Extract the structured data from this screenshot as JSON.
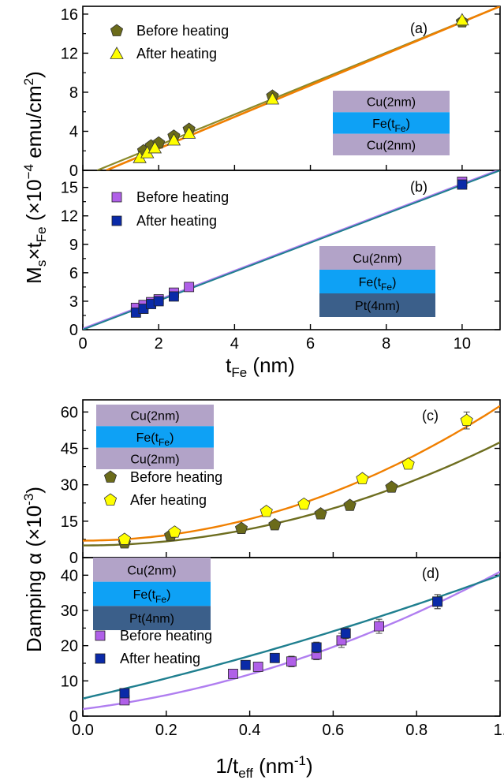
{
  "colors": {
    "before_ab_marker": "#6b6b1a",
    "after_a_marker": "#ffff00",
    "line_before_a": "#8a8a2a",
    "line_after_a": "#f07f00",
    "before_b_marker": "#b060e8",
    "after_b_marker": "#0a2aa8",
    "line_before_b": "#b07ef0",
    "line_after_b": "#1f7f8f",
    "line_before_c": "#6e6e20",
    "line_after_c": "#f07f00",
    "line_before_d": "#b07ef0",
    "line_after_d": "#1f7f8f",
    "layer_cu": "#b2a3c8",
    "layer_fe": "#0ea1f5",
    "layer_pt": "#3b5f8a"
  },
  "figure": {
    "top_ylabel": "M",
    "top_ylabel_sub1": "s",
    "top_ylabel_times": "×t",
    "top_ylabel_sub2": "Fe",
    "top_ylabel_rest": " (×10",
    "top_ylabel_exp": "−4",
    "top_ylabel_unit": " emu/cm",
    "top_ylabel_unit_exp": "2",
    "top_ylabel_close": ")",
    "top_xlabel_main": "t",
    "top_xlabel_sub": "Fe",
    "top_xlabel_unit": " (nm)",
    "bottom_ylabel": "Damping α (×10",
    "bottom_ylabel_exp": "-3",
    "bottom_ylabel_close": ")",
    "bottom_xlabel_main": "1/t",
    "bottom_xlabel_sub": "eff",
    "bottom_xlabel_unit": " (nm",
    "bottom_xlabel_exp": "-1",
    "bottom_xlabel_close": ")"
  },
  "chart_data": [
    {
      "panel": "(a)",
      "type": "scatter",
      "xlim": [
        0,
        11
      ],
      "ylim": [
        0,
        16.8
      ],
      "yticks": [
        "0",
        "4",
        "8",
        "12",
        "16"
      ],
      "legend": [
        "Before heating",
        "After heating"
      ],
      "legend_position": "top-left",
      "stack": [
        "Cu(2nm)",
        "Fe(t",
        "Fe",
        ")",
        "Cu(2nm)"
      ],
      "series": [
        {
          "name": "Before heating",
          "marker": "pentagon",
          "x": [
            1.6,
            1.8,
            2.0,
            2.4,
            2.8,
            5.0,
            10.0
          ],
          "y": [
            2.0,
            2.5,
            2.8,
            3.5,
            4.2,
            7.6,
            15.2
          ]
        },
        {
          "name": "After heating",
          "marker": "triangle",
          "x": [
            1.5,
            1.7,
            1.9,
            2.4,
            2.8,
            5.0,
            10.0
          ],
          "y": [
            1.3,
            1.8,
            2.3,
            3.1,
            3.8,
            7.3,
            15.4
          ]
        }
      ],
      "fits": [
        {
          "series": "Before heating",
          "x": [
            0.38,
            11.0
          ],
          "y": [
            0,
            16.8
          ]
        },
        {
          "series": "After heating",
          "x": [
            0.62,
            11.0
          ],
          "y": [
            0,
            16.8
          ]
        }
      ]
    },
    {
      "panel": "(b)",
      "type": "scatter",
      "xlim": [
        0,
        11
      ],
      "ylim": [
        0,
        16.8
      ],
      "xticks": [
        "0",
        "2",
        "4",
        "6",
        "8",
        "10"
      ],
      "yticks": [
        "0",
        "3",
        "6",
        "9",
        "12",
        "15"
      ],
      "legend": [
        "Before heating",
        "After heating"
      ],
      "legend_position": "top-left",
      "stack": [
        "Cu(2nm)",
        "Fe(t",
        "Fe",
        ")",
        "Pt(4nm)"
      ],
      "series": [
        {
          "name": "Before heating",
          "marker": "square",
          "x": [
            1.4,
            1.6,
            1.8,
            2.0,
            2.4,
            2.8,
            10.0
          ],
          "y": [
            2.3,
            2.6,
            2.9,
            3.2,
            3.9,
            4.5,
            15.6
          ]
        },
        {
          "name": "After heating",
          "marker": "square",
          "x": [
            1.4,
            1.6,
            1.8,
            2.0,
            2.4,
            10.0
          ],
          "y": [
            1.8,
            2.2,
            2.7,
            3.0,
            3.5,
            15.3
          ]
        }
      ],
      "fits": [
        {
          "series": "Before heating",
          "x": [
            0.0,
            11.0
          ],
          "y": [
            0.1,
            16.9
          ]
        },
        {
          "series": "After heating",
          "x": [
            0.0,
            11.0
          ],
          "y": [
            0.0,
            16.8
          ]
        }
      ]
    },
    {
      "panel": "(c)",
      "type": "scatter",
      "xlim": [
        0,
        1.0
      ],
      "ylim": [
        0,
        65
      ],
      "yticks": [
        "0",
        "15",
        "30",
        "45",
        "60"
      ],
      "legend": [
        "Before heating",
        "Afer heating"
      ],
      "legend_position": "center-left",
      "stack": [
        "Cu(2nm)",
        "Fe(t",
        "Fe",
        ")",
        "Cu(2nm)"
      ],
      "series": [
        {
          "name": "Before heating",
          "marker": "pentagon",
          "x": [
            0.1,
            0.21,
            0.38,
            0.46,
            0.57,
            0.64,
            0.74
          ],
          "y": [
            6.0,
            9.0,
            12.0,
            13.5,
            18.0,
            21.5,
            29.0
          ],
          "err": [
            0.5,
            0.5,
            0.5,
            0.5,
            0.5,
            0.5,
            0.5
          ]
        },
        {
          "name": "Afer heating",
          "marker": "pentagon",
          "x": [
            0.1,
            0.22,
            0.44,
            0.53,
            0.67,
            0.78,
            0.92
          ],
          "y": [
            7.5,
            10.5,
            19.0,
            22.0,
            32.5,
            38.5,
            56.5
          ],
          "err": [
            1.0,
            1.0,
            1.0,
            1.0,
            1.0,
            1.0,
            3.5
          ]
        }
      ],
      "fits": [
        {
          "series": "Before heating",
          "model": "quadratic",
          "coef": [
            5.0,
            0.0,
            42.5
          ]
        },
        {
          "series": "Afer heating",
          "model": "quadratic",
          "coef": [
            7.0,
            0.0,
            55.5
          ]
        }
      ]
    },
    {
      "panel": "(d)",
      "type": "scatter",
      "xlim": [
        0,
        1.0
      ],
      "ylim": [
        0,
        45
      ],
      "xticks": [
        "0.0",
        "0.2",
        "0.4",
        "0.6",
        "0.8",
        "1."
      ],
      "yticks": [
        "0",
        "10",
        "20",
        "30",
        "40"
      ],
      "legend": [
        "Before heating",
        "After heating"
      ],
      "legend_position": "center-left",
      "stack": [
        "Cu(2nm)",
        "Fe(t",
        "Fe",
        ")",
        "Pt(4nm)"
      ],
      "series": [
        {
          "name": "Before heating",
          "marker": "square",
          "x": [
            0.1,
            0.36,
            0.42,
            0.5,
            0.56,
            0.62,
            0.71,
            0.85
          ],
          "y": [
            4.5,
            12.0,
            14.0,
            15.5,
            17.5,
            21.5,
            25.5,
            32.5
          ],
          "err": [
            1.0,
            1.0,
            1.0,
            1.5,
            1.5,
            2.0,
            2.0,
            2.0
          ]
        },
        {
          "name": "After heating",
          "marker": "square",
          "x": [
            0.1,
            0.39,
            0.46,
            0.56,
            0.63,
            0.85
          ],
          "y": [
            6.5,
            14.5,
            16.5,
            19.5,
            23.5,
            32.5
          ],
          "err": [
            1.0,
            1.0,
            1.0,
            1.5,
            1.5,
            2.0
          ]
        }
      ],
      "fits": [
        {
          "series": "Before heating",
          "model": "quadratic",
          "coef": [
            2.0,
            15.0,
            24.0
          ]
        },
        {
          "series": "After heating",
          "model": "quadratic",
          "coef": [
            5.0,
            27.0,
            8.0
          ]
        }
      ]
    }
  ]
}
